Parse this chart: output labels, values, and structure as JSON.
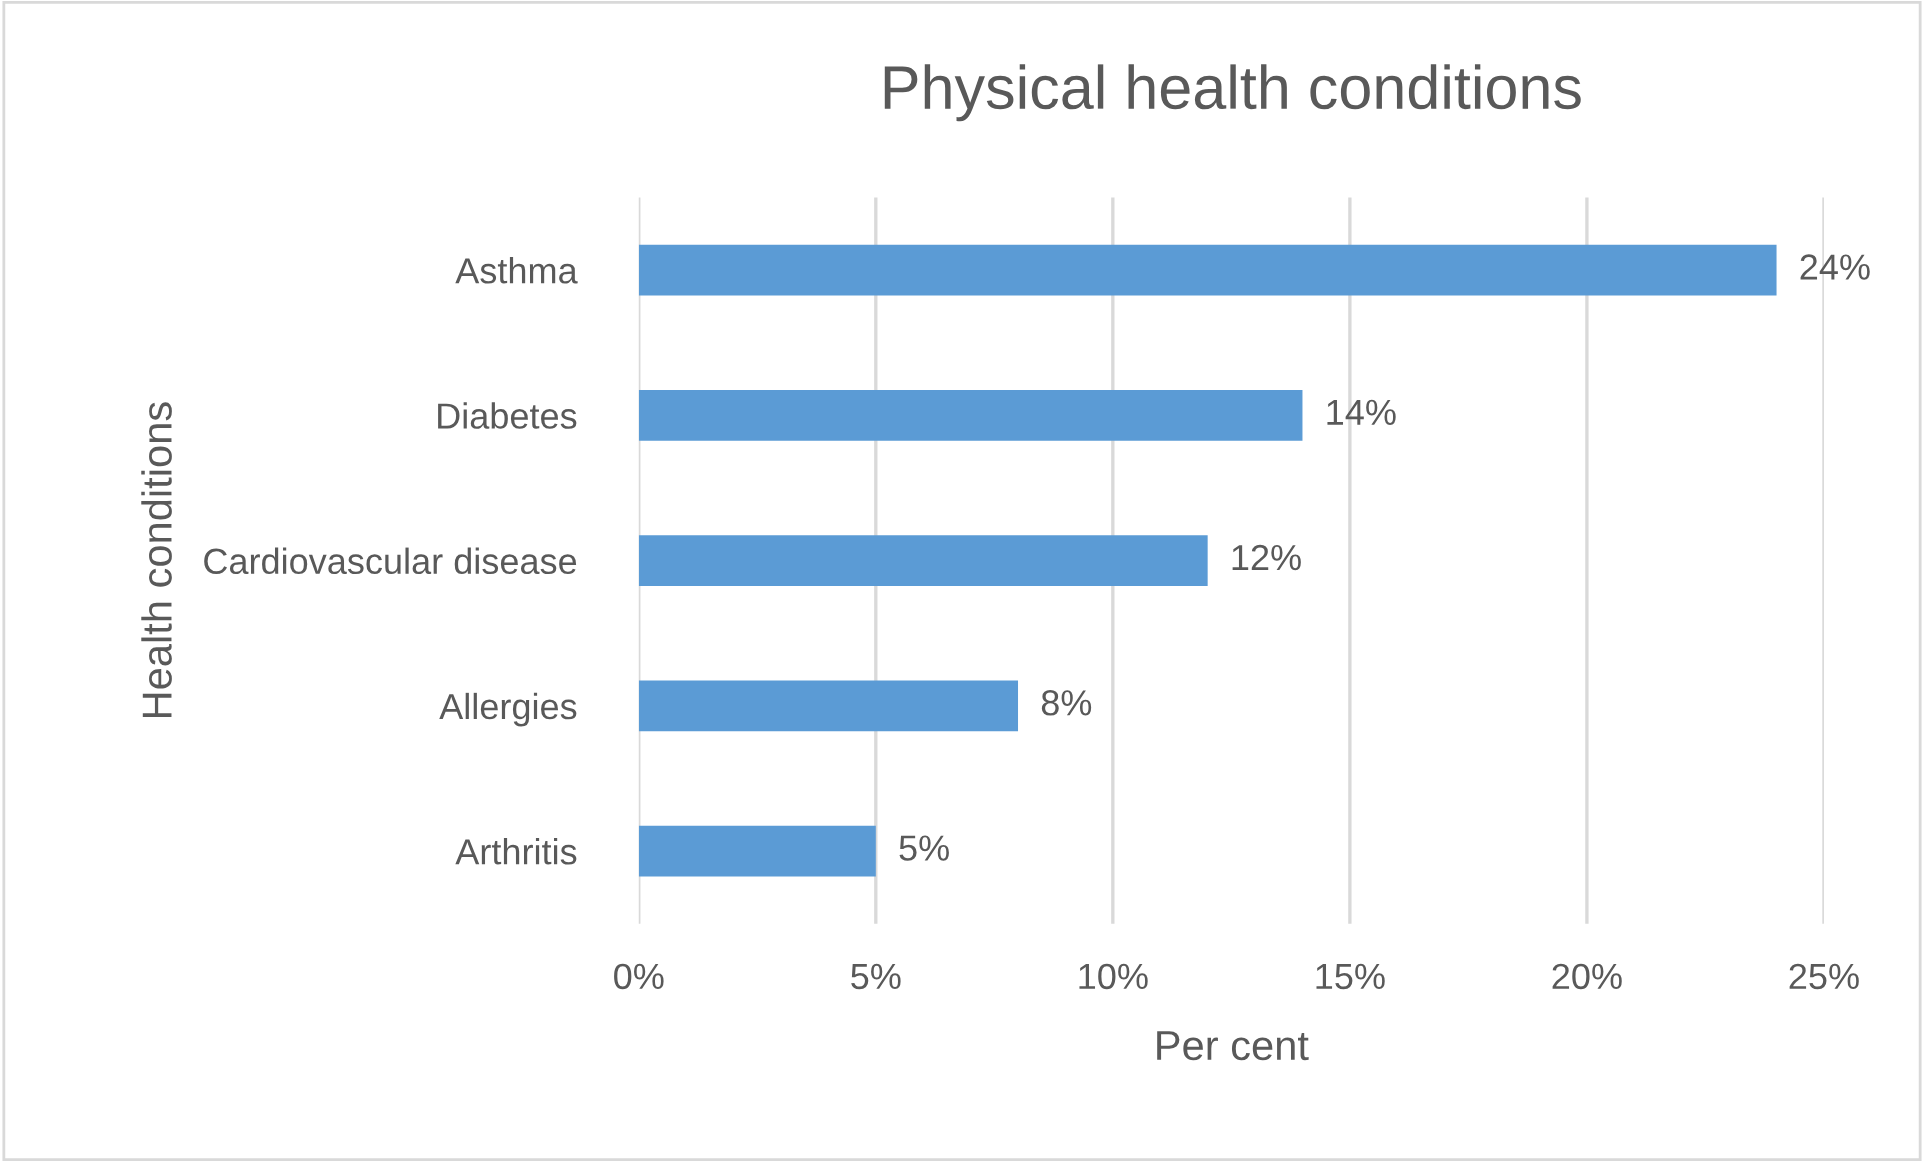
{
  "chart_data": {
    "type": "bar",
    "orientation": "horizontal",
    "title": "Physical health conditions",
    "xlabel": "Per cent",
    "ylabel": "Health conditions",
    "categories": [
      "Asthma",
      "Diabetes",
      "Cardiovascular disease",
      "Allergies",
      "Arthritis"
    ],
    "values": [
      24,
      14,
      12,
      8,
      5
    ],
    "color": "#5b9bd5",
    "xlim": [
      0,
      25
    ],
    "xticks": [
      {
        "value": 0,
        "label": "0%"
      },
      {
        "value": 5,
        "label": "5%"
      },
      {
        "value": 10,
        "label": "10%"
      },
      {
        "value": 15,
        "label": "15%"
      },
      {
        "value": 20,
        "label": "20%"
      },
      {
        "value": 25,
        "label": "25%"
      }
    ],
    "grid": "x",
    "data_labels": true,
    "value_labels": [
      "24%",
      "14%",
      "12%",
      "8%",
      "5%"
    ]
  }
}
